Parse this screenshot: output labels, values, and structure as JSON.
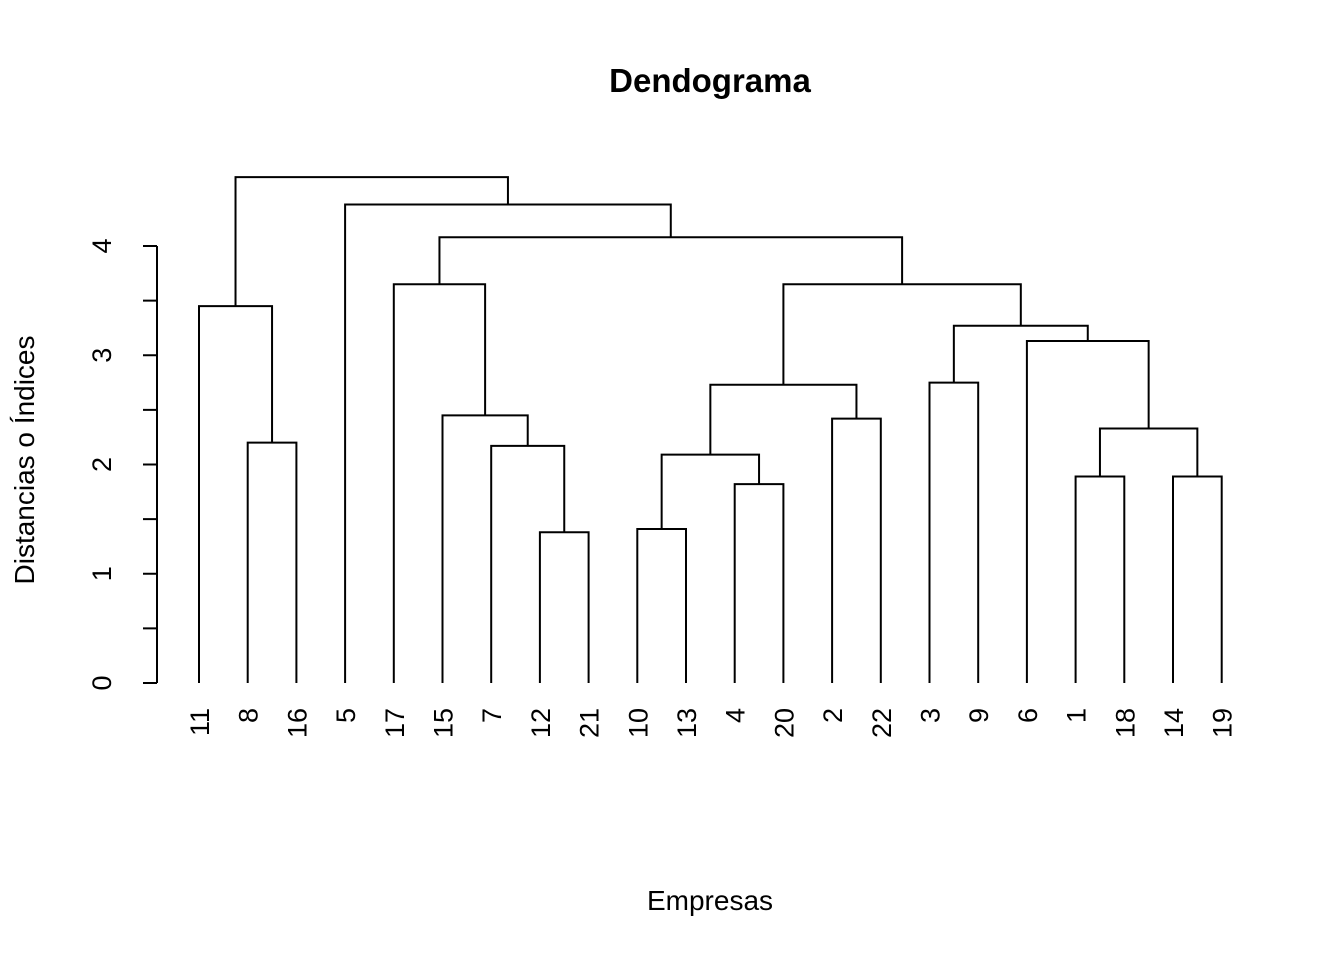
{
  "chart_data": {
    "type": "dendrogram",
    "title": "Dendograma",
    "xlabel": "Empresas",
    "ylabel": "Distancias o Índices",
    "ylim": [
      0,
      4.6
    ],
    "y_ticks": [
      0,
      1,
      2,
      3,
      4
    ],
    "y_tick_labels": [
      "0",
      "1",
      "2",
      "3",
      "4"
    ],
    "leaves": [
      "11",
      "8",
      "16",
      "5",
      "17",
      "15",
      "7",
      "12",
      "21",
      "10",
      "13",
      "4",
      "20",
      "2",
      "22",
      "3",
      "9",
      "6",
      "1",
      "18",
      "14",
      "19"
    ],
    "merges": [
      {
        "left": "8",
        "right": "16",
        "height": 2.2
      },
      {
        "left": "11",
        "right": "8-16",
        "height": 3.45
      },
      {
        "left": "12",
        "right": "21",
        "height": 1.38
      },
      {
        "left": "7",
        "right": "12-21",
        "height": 2.17
      },
      {
        "left": "15",
        "right": "7-12-21",
        "height": 2.45
      },
      {
        "left": "17",
        "right": "15-7-12-21",
        "height": 3.65
      },
      {
        "left": "10",
        "right": "13",
        "height": 1.41
      },
      {
        "left": "4",
        "right": "20",
        "height": 1.82
      },
      {
        "left": "10-13",
        "right": "4-20",
        "height": 2.09
      },
      {
        "left": "2",
        "right": "22",
        "height": 2.42
      },
      {
        "left": "10-13-4-20",
        "right": "2-22",
        "height": 2.73
      },
      {
        "left": "3",
        "right": "9",
        "height": 2.75
      },
      {
        "left": "1",
        "right": "18",
        "height": 1.89
      },
      {
        "left": "14",
        "right": "19",
        "height": 1.89
      },
      {
        "left": "1-18",
        "right": "14-19",
        "height": 2.33
      },
      {
        "left": "6",
        "right": "1-18-14-19",
        "height": 3.13
      },
      {
        "left": "3-9",
        "right": "6-1-18-14-19",
        "height": 3.27
      },
      {
        "left": "10-13-4-20-2-22",
        "right": "3-9-6-1-18-14-19",
        "height": 3.65
      },
      {
        "left": "17-15-7-12-21",
        "right": "10-13-4-20-2-22-3-9-6-1-18-14-19",
        "height": 4.08
      },
      {
        "left": "5",
        "right": "17-15-7-12-21-10-13-4-20-2-22-3-9-6-1-18-14-19",
        "height": 4.38
      },
      {
        "left": "11-8-16",
        "right": "5-17-15-7-12-21-10-13-4-20-2-22-3-9-6-1-18-14-19",
        "height": 4.63
      }
    ]
  }
}
